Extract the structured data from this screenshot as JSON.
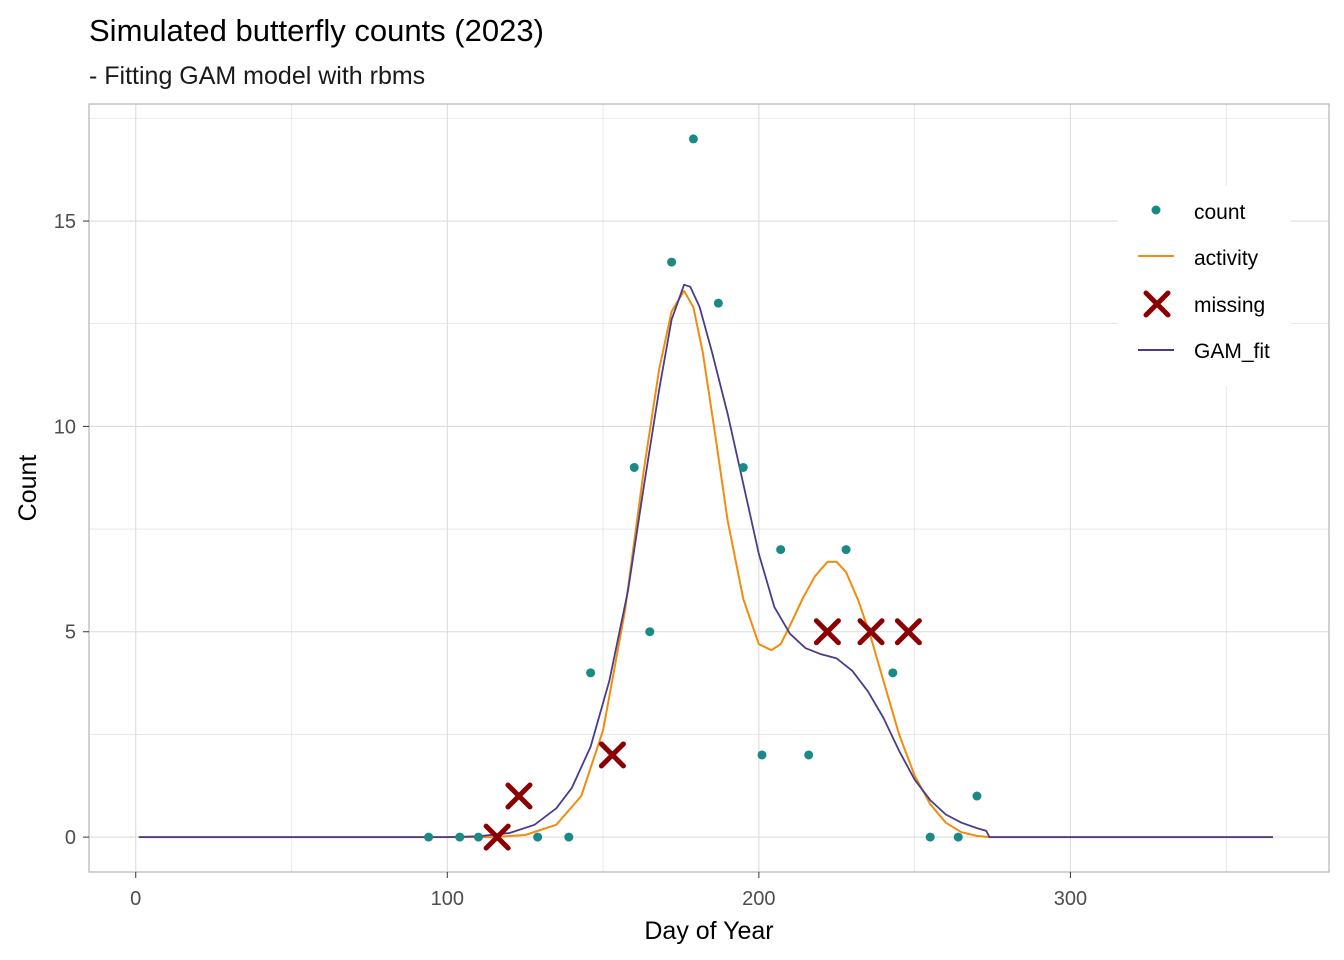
{
  "chart_data": {
    "type": "line",
    "title": "Simulated butterfly counts (2023)",
    "subtitle": "- Fitting GAM model with rbms",
    "xlabel": "Day of Year",
    "ylabel": "Count",
    "xlim": [
      -15,
      383
    ],
    "ylim": [
      -0.85,
      17.85
    ],
    "x_ticks": [
      0,
      100,
      200,
      300
    ],
    "x_tick_labels": [
      "0",
      "100",
      "200",
      "300"
    ],
    "y_ticks": [
      0,
      5,
      10,
      15
    ],
    "y_tick_labels": [
      "0",
      "5",
      "10",
      "15"
    ],
    "x_minor_ticks": [
      50,
      150,
      250,
      350
    ],
    "y_minor_ticks": [
      2.5,
      7.5,
      12.5,
      17.5
    ],
    "grid": true,
    "legend_position": "top-right",
    "legend": [
      "count",
      "activity",
      "missing",
      "GAM_fit"
    ],
    "colors": {
      "count": "#1a8a87",
      "activity": "#f28c0f",
      "missing": "#8b0000",
      "GAM_fit": "#483d8b",
      "grid": "#dcdcdc",
      "panel_border": "#b3b3b3"
    },
    "series": [
      {
        "name": "count",
        "type": "scatter",
        "x": [
          94,
          104,
          110,
          129,
          139,
          146,
          160,
          165,
          172,
          179,
          187,
          195,
          201,
          207,
          216,
          228,
          243,
          255,
          264,
          270
        ],
        "y": [
          0,
          0,
          0,
          0,
          0,
          4,
          9,
          5,
          14,
          17,
          13,
          9,
          2,
          7,
          2,
          7,
          4,
          0,
          0,
          1
        ]
      },
      {
        "name": "missing",
        "type": "scatter",
        "marker": "x",
        "x": [
          116,
          123,
          153,
          222,
          236,
          248
        ],
        "y": [
          0,
          1,
          2,
          5,
          5,
          5
        ]
      },
      {
        "name": "activity",
        "type": "line",
        "x": [
          1,
          100,
          115,
          125,
          135,
          143,
          150,
          157,
          163,
          168,
          172,
          176,
          179,
          182,
          186,
          190,
          195,
          200,
          204,
          207,
          210,
          214,
          218,
          222,
          225,
          228,
          232,
          236,
          240,
          245,
          250,
          255,
          260,
          265,
          270,
          274,
          280,
          365
        ],
        "y": [
          0,
          0,
          0,
          0.05,
          0.3,
          1.0,
          2.6,
          5.5,
          8.9,
          11.4,
          12.8,
          13.3,
          12.9,
          11.8,
          9.8,
          7.7,
          5.8,
          4.7,
          4.55,
          4.7,
          5.15,
          5.8,
          6.35,
          6.7,
          6.7,
          6.45,
          5.75,
          4.85,
          3.8,
          2.5,
          1.5,
          0.8,
          0.35,
          0.12,
          0.03,
          0,
          0,
          0
        ]
      },
      {
        "name": "GAM_fit",
        "type": "line",
        "x": [
          1,
          100,
          110,
          120,
          128,
          135,
          140,
          146,
          152,
          158,
          163,
          168,
          172,
          176,
          178,
          181,
          185,
          190,
          195,
          200,
          205,
          210,
          215,
          220,
          225,
          230,
          235,
          240,
          245,
          250,
          255,
          260,
          265,
          270,
          273,
          274,
          280,
          365
        ],
        "y": [
          0,
          0,
          0.02,
          0.1,
          0.3,
          0.7,
          1.2,
          2.2,
          3.8,
          6.0,
          8.5,
          10.9,
          12.6,
          13.45,
          13.4,
          12.9,
          11.8,
          10.3,
          8.6,
          6.9,
          5.6,
          4.95,
          4.6,
          4.45,
          4.35,
          4.05,
          3.55,
          2.9,
          2.1,
          1.4,
          0.9,
          0.55,
          0.35,
          0.22,
          0.15,
          0.0,
          0,
          0
        ]
      }
    ]
  }
}
